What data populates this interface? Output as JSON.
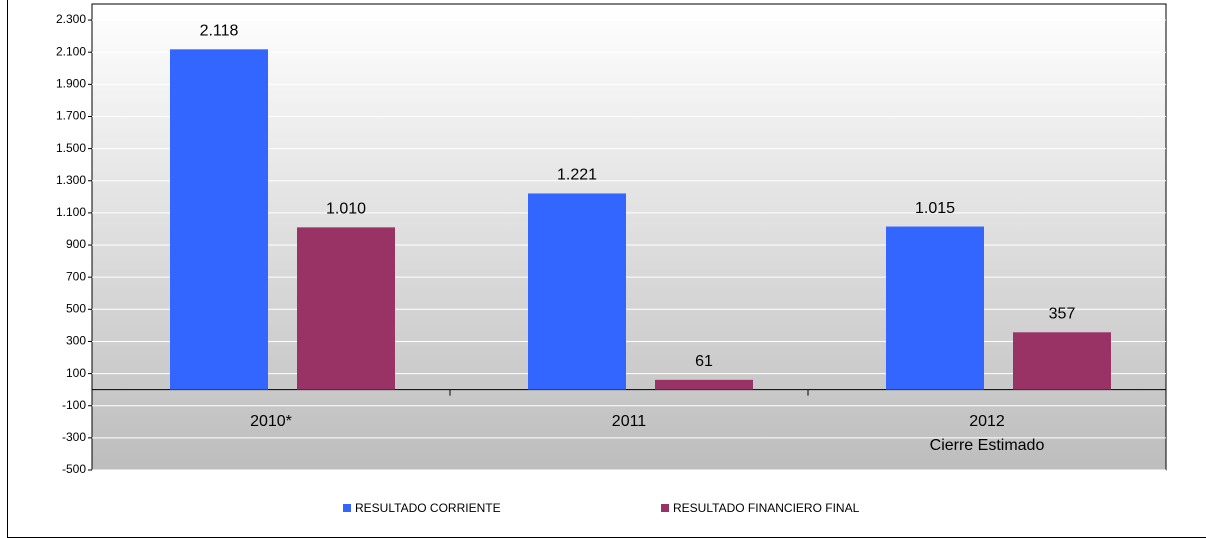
{
  "chart_data": {
    "type": "bar",
    "categories": [
      "2010*",
      "2011",
      "2012\nCierre Estimado"
    ],
    "series": [
      {
        "name": "RESULTADO CORRIENTE",
        "color": "#3366ff",
        "values": [
          2118,
          1221,
          1015
        ],
        "value_labels": [
          "2.118",
          "1.221",
          "1.015"
        ]
      },
      {
        "name": "RESULTADO FINANCIERO FINAL",
        "color": "#993366",
        "values": [
          1010,
          61,
          357
        ],
        "value_labels": [
          "1.010",
          "61",
          "357"
        ]
      }
    ],
    "ylim": [
      -500,
      2400
    ],
    "yticks": [
      -500,
      -300,
      -100,
      100,
      300,
      500,
      700,
      900,
      {
        "value": 1100,
        "label": "1.100"
      },
      {
        "value": 1300,
        "label": "1.300"
      },
      {
        "value": 1500,
        "label": "1.500"
      },
      {
        "value": 1700,
        "label": "1.700"
      },
      {
        "value": 1900,
        "label": "1.900"
      },
      {
        "value": 2100,
        "label": "2.100"
      },
      {
        "value": 2300,
        "label": "2.300"
      }
    ],
    "grid": true,
    "legend": "bottom"
  }
}
